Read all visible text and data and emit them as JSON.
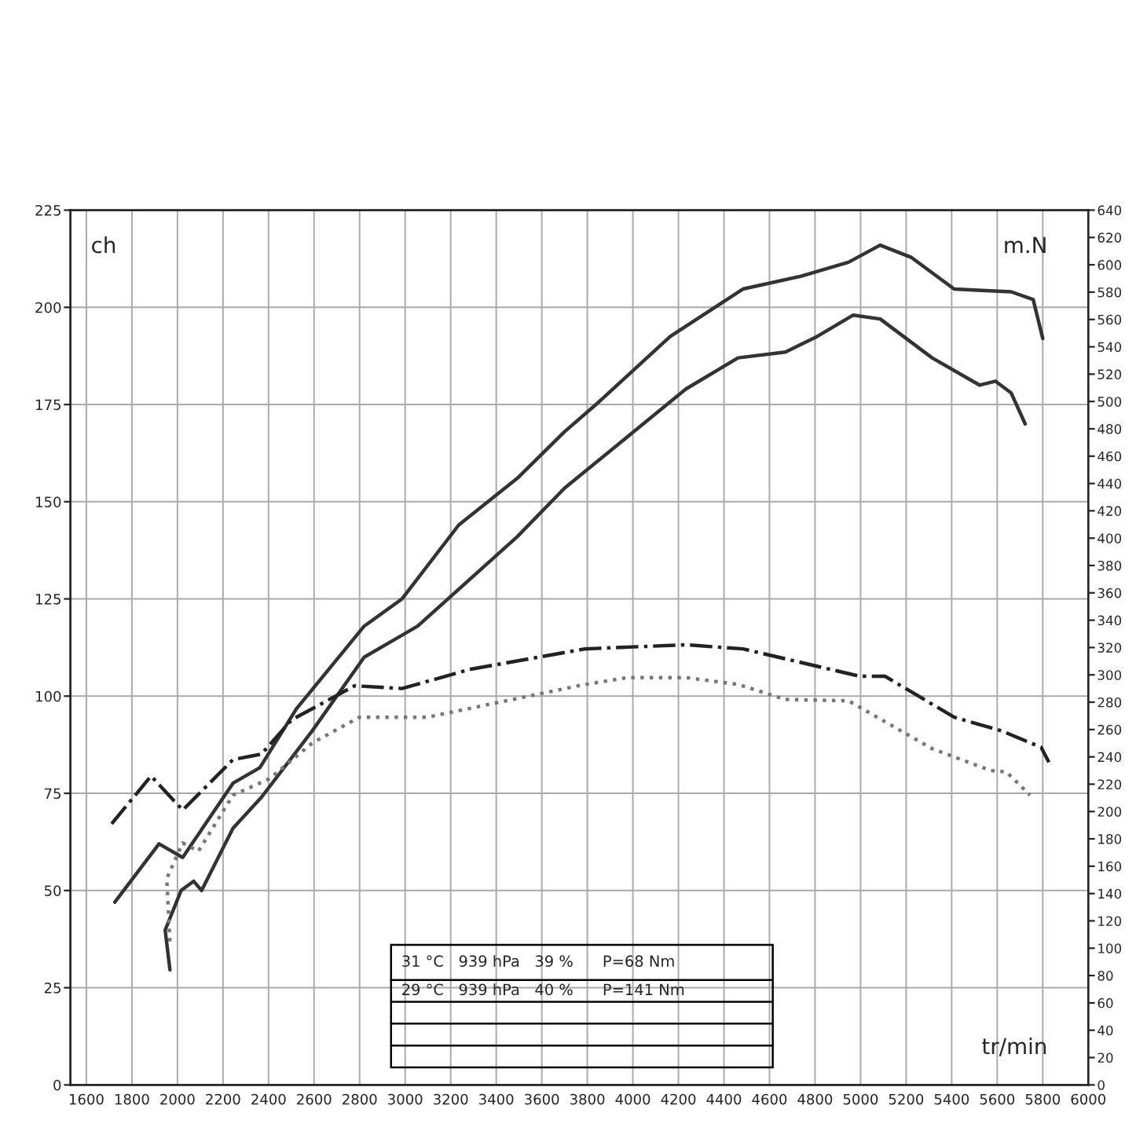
{
  "chart_data": {
    "type": "line",
    "xlabel": "tr/min",
    "ylabel": "ch",
    "y2label": "m.N",
    "xlim": [
      1530,
      6000
    ],
    "xticks": [
      1600,
      1800,
      2000,
      2200,
      2400,
      2600,
      2800,
      3000,
      3200,
      3400,
      3600,
      3800,
      4000,
      4200,
      4400,
      4600,
      4800,
      5000,
      5200,
      5400,
      5600,
      5800,
      6000
    ],
    "ylim": [
      0,
      225
    ],
    "yticks": [
      0,
      25,
      50,
      75,
      100,
      125,
      150,
      175,
      200,
      225
    ],
    "y2lim": [
      0,
      640
    ],
    "y2ticks": [
      0,
      20,
      40,
      60,
      80,
      100,
      120,
      140,
      160,
      180,
      200,
      220,
      240,
      260,
      280,
      300,
      320,
      340,
      360,
      380,
      400,
      420,
      440,
      460,
      480,
      500,
      520,
      540,
      560,
      580,
      600,
      620,
      640
    ],
    "grid": true,
    "marker": "none",
    "annotations": [
      "31 °C   939 hPa   39 %      P=68 Nm",
      "29 °C   939 hPa   40 %      P=141 Nm"
    ],
    "series": [
      {
        "color": "#333333",
        "line_style": "solid",
        "x": [
          1725,
          1919,
          2023,
          2244,
          2362,
          2522,
          2820,
          2986,
          3235,
          3492,
          3700,
          3838,
          4164,
          4483,
          4739,
          4947,
          5086,
          5224,
          5411,
          5550,
          5661,
          5758,
          5800
        ],
        "values": [
          47,
          62,
          58.5,
          77.6,
          81.6,
          96.7,
          118,
          125,
          144,
          156,
          168,
          175,
          192.5,
          204.7,
          208,
          211.6,
          216,
          212.8,
          204.7,
          204.3,
          204,
          202,
          192
        ]
      },
      {
        "color": "#333333",
        "line_style": "solid",
        "x": [
          1967,
          1946,
          2016,
          2071,
          2106,
          2244,
          2369,
          2591,
          2820,
          3055,
          3492,
          3700,
          4233,
          4462,
          4670,
          4809,
          4968,
          5086,
          5314,
          5522,
          5592,
          5661,
          5723
        ],
        "values": [
          29.6,
          39.8,
          50,
          52.4,
          50,
          66,
          74,
          91,
          110,
          118,
          141,
          153.5,
          179,
          187,
          188.5,
          192.5,
          198,
          197,
          187,
          180,
          181,
          178,
          170
        ]
      },
      {
        "color": "#222222",
        "line_style": "dashdot",
        "axis": "y2",
        "x": [
          1711,
          1884,
          2023,
          2244,
          2369,
          2501,
          2778,
          2986,
          3284,
          3790,
          4233,
          4483,
          4996,
          5107,
          5411,
          5619,
          5793,
          5827
        ],
        "values": [
          191,
          226,
          201,
          238,
          242,
          267,
          292,
          290,
          304,
          319,
          322,
          319,
          299,
          299,
          269,
          259,
          247,
          236
        ]
      },
      {
        "color": "#777777",
        "line_style": "dotted",
        "axis": "y2",
        "x": [
          1967,
          1953,
          2023,
          2092,
          2244,
          2404,
          2591,
          2799,
          3097,
          3790,
          3977,
          4233,
          4462,
          4670,
          4947,
          5314,
          5571,
          5640,
          5744
        ],
        "values": [
          105,
          151,
          177,
          171,
          212,
          224,
          250,
          269,
          269,
          293,
          298,
          298,
          293,
          282,
          281,
          246,
          230,
          229,
          212
        ]
      }
    ]
  }
}
